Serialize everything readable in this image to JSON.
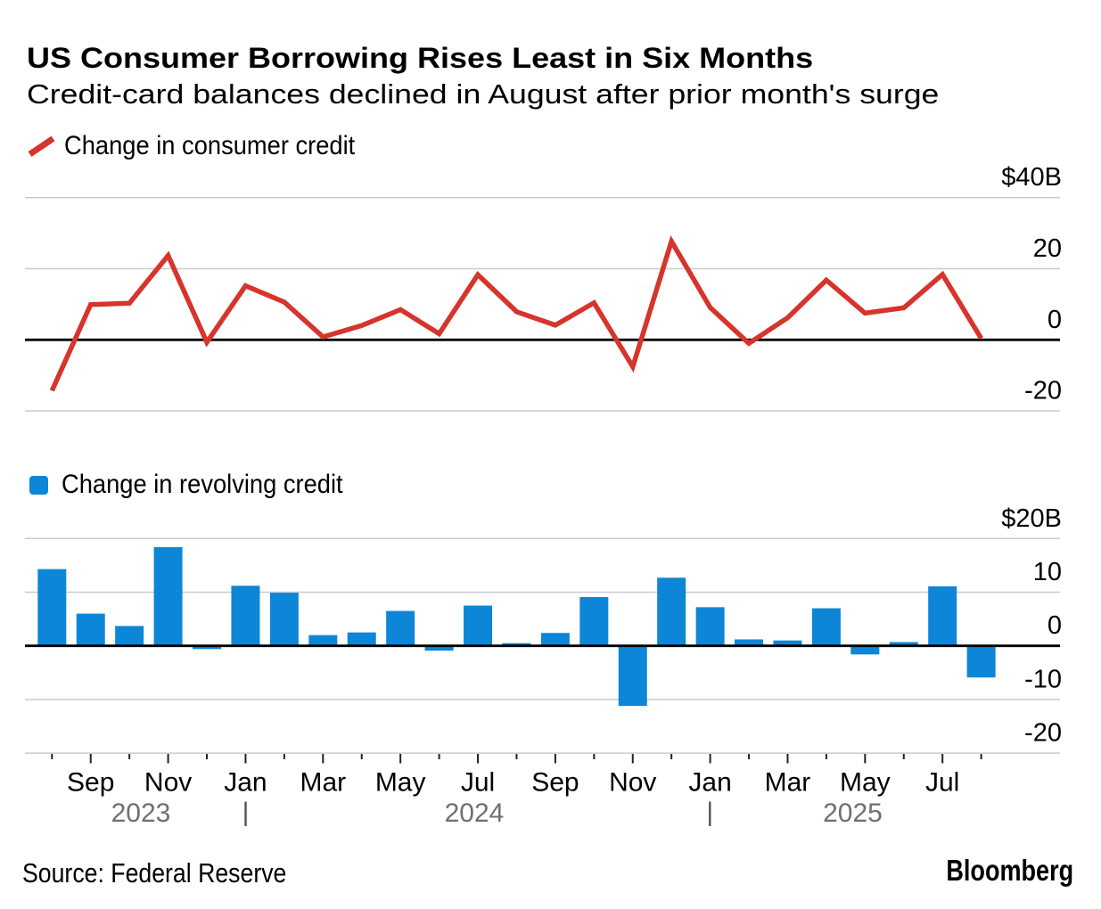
{
  "header": {
    "title": "US Consumer Borrowing Rises Least in Six Months",
    "subtitle": "Credit-card balances declined in August after prior month's surge"
  },
  "legends": {
    "line": "Change in consumer credit",
    "bar": "Change in revolving credit"
  },
  "colors": {
    "line": "#d6342c",
    "bar": "#0d86d8",
    "grid": "#cbcbcb",
    "zero_line": "#000000",
    "year_label": "#6f6f6f"
  },
  "chart_data": [
    {
      "type": "line",
      "title": "Change in consumer credit",
      "unit": "$B",
      "x": [
        "Aug 2023",
        "Sep 2023",
        "Oct 2023",
        "Nov 2023",
        "Dec 2023",
        "Jan 2024",
        "Feb 2024",
        "Mar 2024",
        "Apr 2024",
        "May 2024",
        "Jun 2024",
        "Jul 2024",
        "Aug 2024",
        "Sep 2024",
        "Oct 2024",
        "Nov 2024",
        "Dec 2024",
        "Jan 2025",
        "Feb 2025",
        "Mar 2025",
        "Apr 2025",
        "May 2025",
        "Jun 2025",
        "Jul 2025",
        "Aug 2025"
      ],
      "values": [
        -14.3,
        9.9,
        10.3,
        23.7,
        -0.7,
        15.2,
        10.6,
        0.8,
        4.0,
        8.5,
        1.7,
        18.3,
        7.9,
        4.1,
        10.4,
        -7.6,
        27.7,
        9.1,
        -1.0,
        6.2,
        16.8,
        7.5,
        9.0,
        18.4,
        0.4
      ],
      "yticks": [
        40,
        20,
        0,
        -20
      ],
      "ytick_labels": [
        "$40B",
        "20",
        "0",
        "-20"
      ],
      "ylim": [
        -24,
        46
      ],
      "grid": true,
      "legend_position": "top-left"
    },
    {
      "type": "bar",
      "title": "Change in revolving credit",
      "unit": "$B",
      "x": [
        "Aug 2023",
        "Sep 2023",
        "Oct 2023",
        "Nov 2023",
        "Dec 2023",
        "Jan 2024",
        "Feb 2024",
        "Mar 2024",
        "Apr 2024",
        "May 2024",
        "Jun 2024",
        "Jul 2024",
        "Aug 2024",
        "Sep 2024",
        "Oct 2024",
        "Nov 2024",
        "Dec 2024",
        "Jan 2025",
        "Feb 2025",
        "Mar 2025",
        "Apr 2025",
        "May 2025",
        "Jun 2025",
        "Jul 2025",
        "Aug 2025"
      ],
      "values": [
        14.3,
        6.0,
        3.7,
        18.4,
        -0.6,
        11.2,
        9.9,
        2.0,
        2.5,
        6.5,
        -0.9,
        7.5,
        0.5,
        2.4,
        9.1,
        -11.2,
        12.7,
        7.2,
        1.2,
        1.0,
        7.0,
        -1.6,
        0.7,
        11.1,
        -5.9
      ],
      "yticks": [
        20,
        10,
        0,
        -10,
        -20
      ],
      "ytick_labels": [
        "$20B",
        "10",
        "0",
        "-10",
        "-20"
      ],
      "ylim": [
        -20,
        23
      ],
      "grid": true,
      "legend_position": "top-left"
    }
  ],
  "xaxis": {
    "tick_labels": [
      "Sep",
      "Nov",
      "Jan",
      "Mar",
      "May",
      "Jul",
      "Sep",
      "Nov",
      "Jan",
      "Mar",
      "May",
      "Jul"
    ],
    "year_labels": [
      "2023",
      "2024",
      "2025"
    ],
    "separator": "|"
  },
  "footer": {
    "source": "Source: Federal Reserve",
    "brand": "Bloomberg"
  }
}
